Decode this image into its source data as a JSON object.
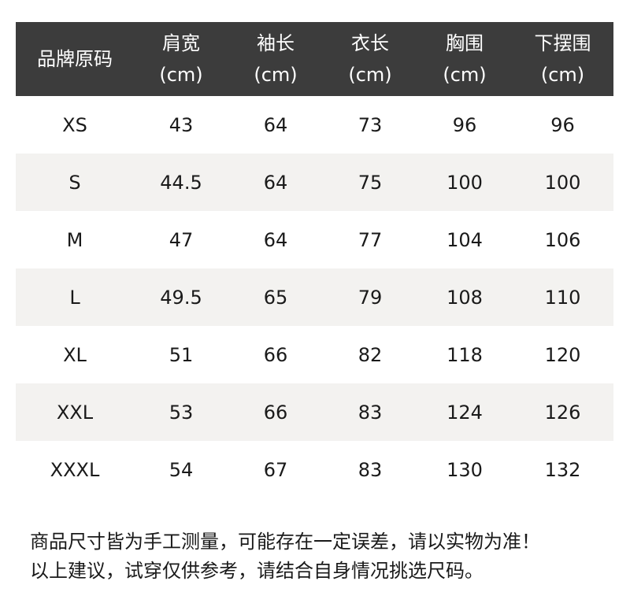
{
  "table": {
    "headers": [
      {
        "name": "品牌原码",
        "unit": ""
      },
      {
        "name": "肩宽",
        "unit": "(cm)"
      },
      {
        "name": "袖长",
        "unit": "(cm)"
      },
      {
        "name": "衣长",
        "unit": "(cm)"
      },
      {
        "name": "胸围",
        "unit": "(cm)"
      },
      {
        "name": "下摆围",
        "unit": "(cm)"
      }
    ],
    "rows": [
      [
        "XS",
        "43",
        "64",
        "73",
        "96",
        "96"
      ],
      [
        "S",
        "44.5",
        "64",
        "75",
        "100",
        "100"
      ],
      [
        "M",
        "47",
        "64",
        "77",
        "104",
        "106"
      ],
      [
        "L",
        "49.5",
        "65",
        "79",
        "108",
        "110"
      ],
      [
        "XL",
        "51",
        "66",
        "82",
        "118",
        "120"
      ],
      [
        "XXL",
        "53",
        "66",
        "83",
        "124",
        "126"
      ],
      [
        "XXXL",
        "54",
        "67",
        "83",
        "130",
        "132"
      ]
    ]
  },
  "notes": [
    "商品尺寸皆为手工测量，可能存在一定误差，请以实物为准！",
    "以上建议，试穿仅供参考，请结合自身情况挑选尺码。"
  ],
  "colors": {
    "header_bg": "#3c3c3c",
    "alt_row_bg": "#f3f2f0"
  }
}
